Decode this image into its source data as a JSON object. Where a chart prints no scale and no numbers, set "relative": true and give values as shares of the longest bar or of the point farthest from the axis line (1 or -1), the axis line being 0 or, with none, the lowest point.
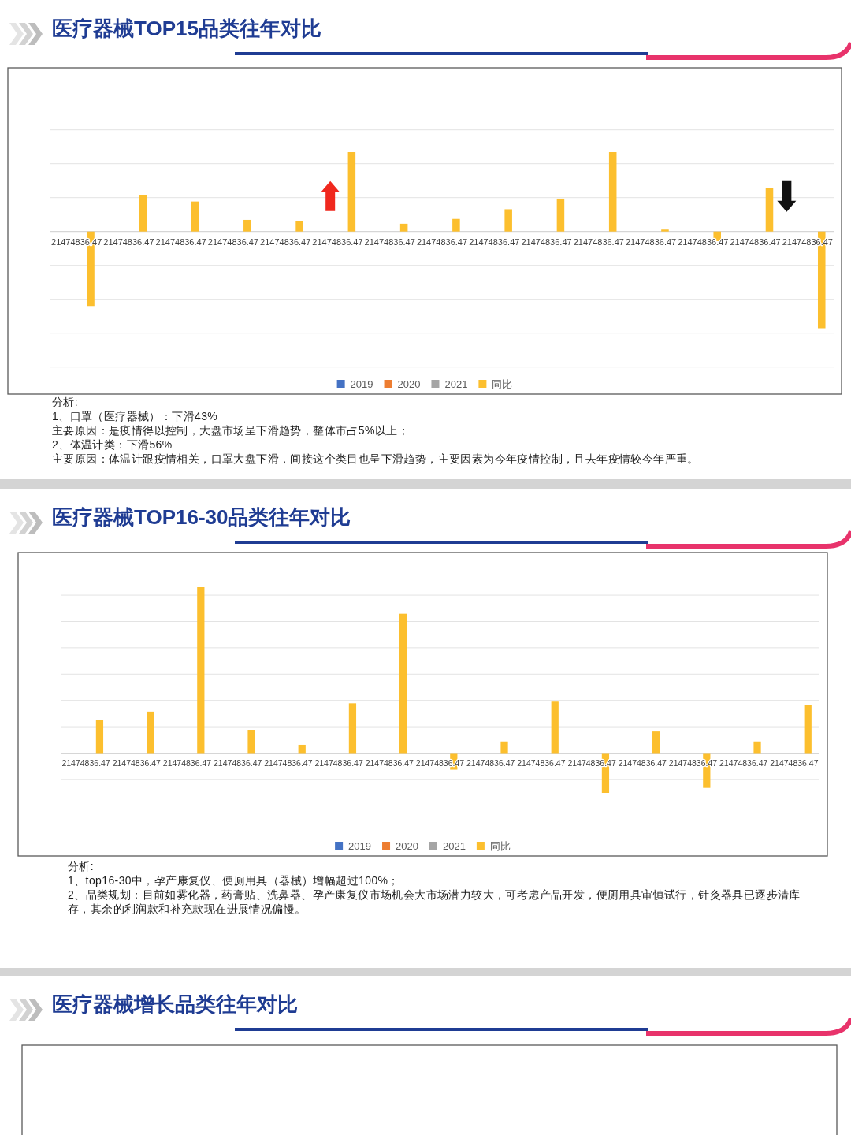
{
  "chart_data": [
    {
      "type": "bar",
      "title": "医疗器械TOP15品类往年对比",
      "relative": true,
      "grid": "y",
      "legend": "bottom",
      "categories": [
        "21474836.47",
        "21474836.47",
        "21474836.47",
        "21474836.47",
        "21474836.47",
        "21474836.47",
        "21474836.47",
        "21474836.47",
        "21474836.47",
        "21474836.47",
        "21474836.47",
        "21474836.47",
        "21474836.47",
        "21474836.47",
        "21474836.47"
      ],
      "series": [
        {
          "name": "2019",
          "color": "#4472c4",
          "values": [
            null,
            null,
            null,
            null,
            null,
            null,
            null,
            null,
            null,
            null,
            null,
            null,
            null,
            null,
            null
          ]
        },
        {
          "name": "2020",
          "color": "#ed7d31",
          "values": [
            null,
            null,
            null,
            null,
            null,
            null,
            null,
            null,
            null,
            null,
            null,
            null,
            null,
            null,
            null
          ]
        },
        {
          "name": "2021",
          "color": "#a5a5a5",
          "values": [
            null,
            null,
            null,
            null,
            null,
            null,
            null,
            null,
            null,
            null,
            null,
            null,
            null,
            null,
            null
          ]
        },
        {
          "name": "同比",
          "color": "#fcbf2e",
          "values": [
            -0.77,
            0.38,
            0.31,
            0.12,
            0.11,
            0.82,
            0.08,
            0.13,
            0.23,
            0.34,
            0.82,
            0.02,
            -0.1,
            0.45,
            -1
          ]
        }
      ],
      "annotations": [
        "分析:",
        "1、口罩（医疗器械）：下滑43%",
        "主要原因：是疫情得以控制，大盘市场呈下滑趋势，整体市占5%以上；",
        "2、体温计类：下滑56%",
        "主要原因：体温计跟疫情相关，口罩大盘下滑，间接这个类目也呈下滑趋势，主要因素为今年疫情控制，且去年疫情较今年严重。"
      ]
    },
    {
      "type": "bar",
      "title": "医疗器械TOP16-30品类往年对比",
      "relative": true,
      "grid": "y",
      "legend": "bottom",
      "categories": [
        "21474836.47",
        "21474836.47",
        "21474836.47",
        "21474836.47",
        "21474836.47",
        "21474836.47",
        "21474836.47",
        "21474836.47",
        "21474836.47",
        "21474836.47",
        "21474836.47",
        "21474836.47",
        "21474836.47",
        "21474836.47",
        "21474836.47"
      ],
      "series": [
        {
          "name": "2019",
          "color": "#4472c4",
          "values": [
            null,
            null,
            null,
            null,
            null,
            null,
            null,
            null,
            null,
            null,
            null,
            null,
            null,
            null,
            null
          ]
        },
        {
          "name": "2020",
          "color": "#ed7d31",
          "values": [
            null,
            null,
            null,
            null,
            null,
            null,
            null,
            null,
            null,
            null,
            null,
            null,
            null,
            null,
            null
          ]
        },
        {
          "name": "2021",
          "color": "#a5a5a5",
          "values": [
            null,
            null,
            null,
            null,
            null,
            null,
            null,
            null,
            null,
            null,
            null,
            null,
            null,
            null,
            null
          ]
        },
        {
          "name": "同比",
          "color": "#fcbf2e",
          "values": [
            0.2,
            0.25,
            1,
            0.14,
            0.05,
            0.3,
            0.84,
            -0.1,
            0.07,
            0.31,
            -0.24,
            0.13,
            -0.21,
            0.07,
            0.29
          ]
        }
      ],
      "annotations": [
        "分析:",
        "1、top16-30中，孕产康复仪、便厕用具（器械）增幅超过100%；",
        "2、品类规划：目前如雾化器，药膏贴、洗鼻器、孕产康复仪市场机会大市场潜力较大，可考虑产品开发，便厕用具审慎试行，针灸器具已逐步清库存，其余的利润款和补充款现在进展情况偏慢。"
      ]
    },
    {
      "type": "other",
      "title": "医疗器械增长品类往年对比"
    }
  ]
}
